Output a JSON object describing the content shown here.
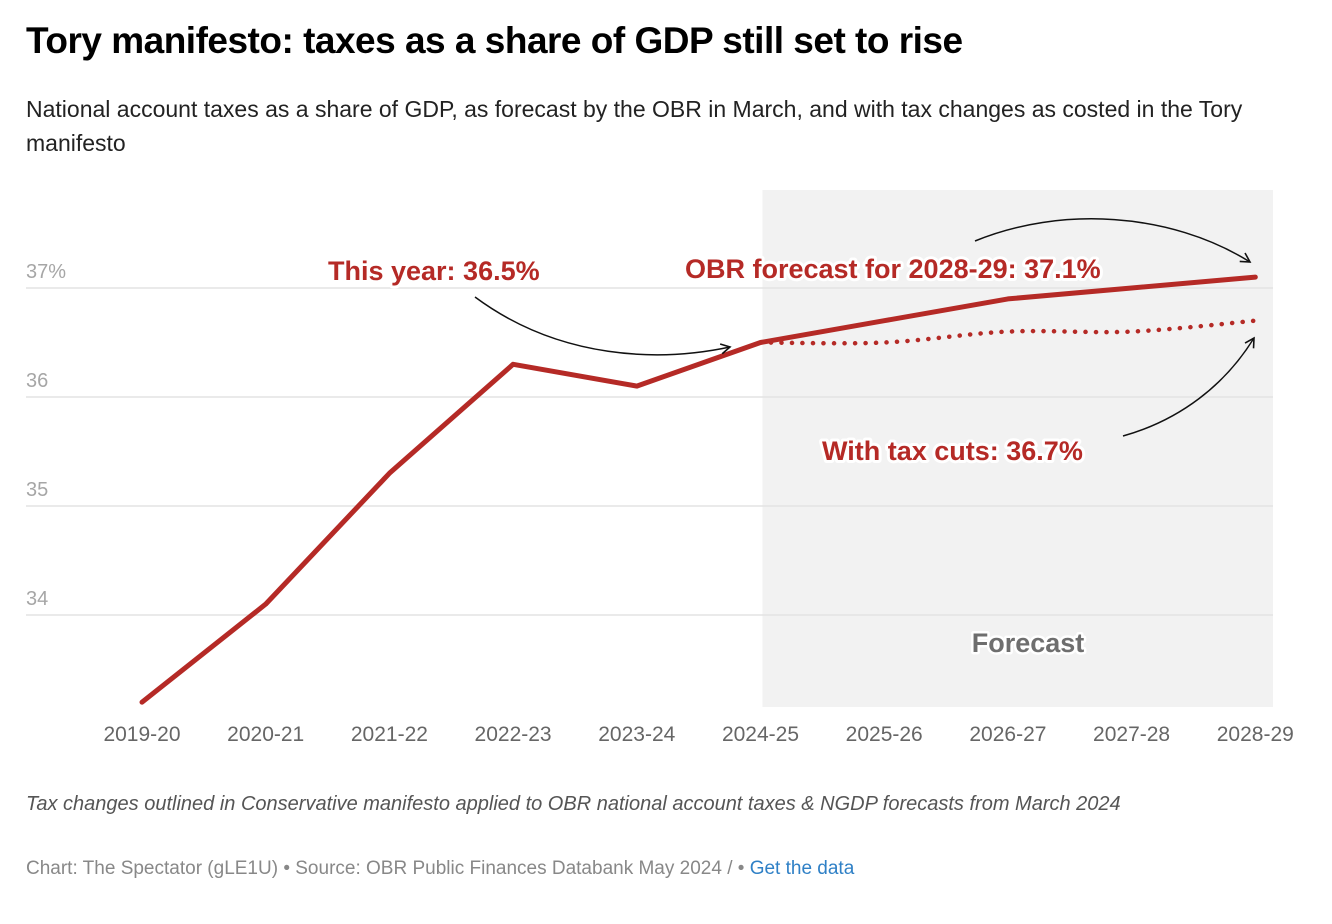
{
  "header": {
    "title": "Tory manifesto: taxes as a share of GDP still set to rise",
    "subtitle": "National account taxes as a share of GDP, as forecast by the OBR in March, and with tax changes as costed in the Tory manifesto"
  },
  "footer": {
    "notes": "Tax changes outlined in Conservative manifesto applied to OBR national account taxes & NGDP forecasts from March 2024",
    "source_text": "Chart: The Spectator (gLE1U) • Source: OBR Public Finances Databank May 2024 /  • ",
    "get_data_link": "Get the data"
  },
  "colors": {
    "series": "#b52a26",
    "forecast_band": "#f2f2f2",
    "grid": "#e3e3e3",
    "link": "#2f80c6"
  },
  "chart_data": {
    "type": "line",
    "title": "Tory manifesto: taxes as a share of GDP still set to rise",
    "xlabel": "",
    "ylabel": "",
    "categories": [
      "2019-20",
      "2020-21",
      "2021-22",
      "2022-23",
      "2023-24",
      "2024-25",
      "2025-26",
      "2026-27",
      "2027-28",
      "2028-29"
    ],
    "y_ticks": [
      34,
      35,
      36,
      37
    ],
    "y_tick_labels": [
      "34",
      "35",
      "36",
      "37%"
    ],
    "ylim": [
      33.1,
      37.9
    ],
    "grid": true,
    "series": [
      {
        "name": "OBR forecast",
        "style": "solid",
        "values": [
          33.2,
          34.1,
          35.3,
          36.3,
          36.1,
          36.5,
          36.7,
          36.9,
          37.0,
          37.1
        ]
      },
      {
        "name": "With tax cuts",
        "style": "dotted",
        "values": [
          null,
          null,
          null,
          null,
          null,
          36.5,
          36.5,
          36.6,
          36.6,
          36.7
        ]
      }
    ],
    "forecast_region": {
      "from": "2024-25",
      "to": "2028-29",
      "label": "Forecast"
    },
    "annotations": [
      {
        "id": "this-year",
        "text": "This year: 36.5%"
      },
      {
        "id": "obr-forecast",
        "text": "OBR forecast for 2028-29: 37.1%"
      },
      {
        "id": "tax-cuts",
        "text": "With tax cuts: 36.7%"
      }
    ]
  }
}
